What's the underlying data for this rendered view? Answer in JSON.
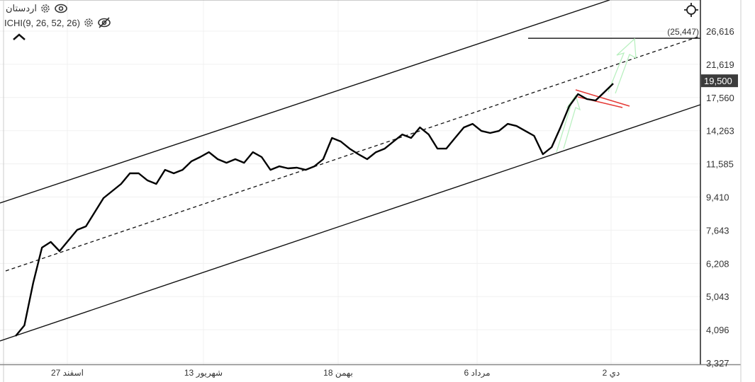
{
  "header": {
    "symbol": "اردستان",
    "indicator": "ICHI(9, 26, 52, 26)",
    "icons": [
      "gear-icon",
      "eye-icon",
      "eye-off-icon",
      "chevron-up-icon",
      "crosshair-icon"
    ]
  },
  "chart_data": {
    "type": "line",
    "y_scale": "log",
    "ylim": [
      3327,
      30500
    ],
    "y_ticks": [
      "26,616",
      "21,619",
      "17,560",
      "14,263",
      "11,585",
      "9,410",
      "7,643",
      "6,208",
      "5,043",
      "4,096",
      "3,327"
    ],
    "y_tick_values": [
      26616,
      21619,
      17560,
      14263,
      11585,
      9410,
      7643,
      6208,
      5043,
      4096,
      3327
    ],
    "x_ticks": [
      "27 اسفند",
      "13 شهريور",
      "18 بهمن",
      "6 مرداد",
      "2 دي"
    ],
    "current_price_label": "19,500",
    "current_price": 19500,
    "target_label": "(25,447)",
    "target_price": 25447,
    "grid": true,
    "colors": {
      "line": "#000000",
      "channel": "#000000",
      "pattern": "#e53935",
      "arrow": "#b9f0c0",
      "price_badge": "#3c3c3c"
    },
    "values": [
      3938,
      4209,
      5490,
      6853,
      7101,
      6702,
      7164,
      7656,
      7829,
      8555,
      9347,
      9771,
      10214,
      10916,
      10916,
      10443,
      10214,
      11159,
      10916,
      11159,
      11767,
      12087,
      12467,
      11927,
      11665,
      11927,
      11665,
      12467,
      12087,
      11159,
      11408,
      11259,
      11309,
      11159,
      11408,
      11927,
      13625,
      13325,
      12746,
      12303,
      11927,
      12467,
      12746,
      13325,
      13927,
      13625,
      14560,
      13927,
      12746,
      12746,
      13625,
      14560,
      14885,
      14240,
      14057,
      14240,
      14885,
      14689,
      14240,
      13807,
      12303,
      12862,
      14560,
      16631,
      17936,
      17387,
      17234,
      18172,
      19164
    ]
  }
}
